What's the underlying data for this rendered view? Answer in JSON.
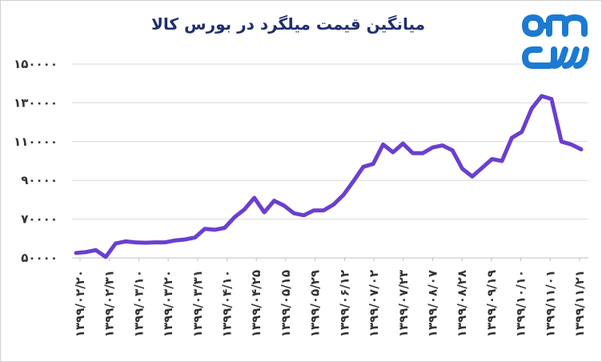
{
  "chart_data": {
    "type": "line",
    "title": "میانگین قیمت میلگرد در بورس کالا",
    "xlabel": "",
    "ylabel": "",
    "ylim": [
      50000,
      150000
    ],
    "y_ticks": [
      50000,
      70000,
      90000,
      110000,
      130000,
      150000
    ],
    "y_tick_labels": [
      "۵۰۰۰۰",
      "۷۰۰۰۰",
      "۹۰۰۰۰",
      "۱۱۰۰۰۰",
      "۱۳۰۰۰۰",
      "۱۵۰۰۰۰"
    ],
    "x_tick_labels": [
      "۱۳۹۹/۰۲/۲۰",
      "۱۳۹۹/۰۲/۳۱",
      "۱۳۹۹/۰۳/۱۰",
      "۱۳۹۹/۰۳/۲۰",
      "۱۳۹۹/۰۳/۳۱",
      "۱۳۹۹/۰۴/۱۰",
      "۱۳۹۹/۰۴/۲۵",
      "۱۳۹۹/۰۵/۱۵",
      "۱۳۹۹/۰۵/۲۹",
      "۱۳۹۹/۰۶/۱۲",
      "۱۳۹۹/۰۷/۰۲",
      "۱۳۹۹/۰۷/۲۳",
      "۱۳۹۹/۰۸/۰۷",
      "۱۳۹۹/۰۸/۲۸",
      "۱۳۹۹/۰۹/۱۹",
      "۱۳۹۹/۱۰/۱۰",
      "۱۳۹۹/۱۱/۰۱",
      "۱۳۹۹/۱۱/۲۱"
    ],
    "grid": true,
    "legend": "none",
    "series": [
      {
        "color": "#6a3fd0",
        "values": [
          52500,
          53000,
          54000,
          50500,
          57500,
          58500,
          58000,
          57800,
          58000,
          58000,
          59000,
          59500,
          60500,
          65000,
          64500,
          65500,
          71000,
          75000,
          81000,
          73500,
          79500,
          77000,
          73000,
          72000,
          74500,
          74500,
          77500,
          82500,
          89500,
          97000,
          98500,
          108500,
          104500,
          109000,
          104000,
          104000,
          107000,
          108000,
          105500,
          96000,
          92000,
          96500,
          101000,
          100000,
          112000,
          115000,
          127000,
          133500,
          132000,
          110000,
          108500,
          106000
        ]
      }
    ]
  },
  "logo": {
    "name": "company-logo",
    "color": "#1c7ad1"
  }
}
